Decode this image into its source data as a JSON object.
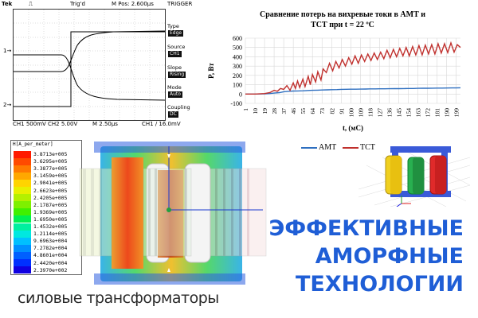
{
  "oscilloscope": {
    "brand": "Tek",
    "trigger_status": "Trig'd",
    "position": "M Pos: 2.600µs",
    "trigger_header": "TRIGGER",
    "menu": [
      {
        "label": "Type",
        "value": "Edge"
      },
      {
        "label": "Source",
        "value": "CH1"
      },
      {
        "label": "Slope",
        "value": "Rising"
      },
      {
        "label": "Mode",
        "value": "Auto"
      },
      {
        "label": "Coupling",
        "value": "DC"
      }
    ],
    "bottom_left": "CH1  500mV   CH2  5.00V",
    "bottom_mid": "M 2.50µs",
    "bottom_right": "CH1 ∕  16.0mV",
    "ch1_marker": "1→",
    "ch2_marker": "2→"
  },
  "loss_chart": {
    "title_line1": "Сравнение потерь на вихревые токи в АМТ и",
    "title_line2": "ТСТ при t = 22 ºC",
    "ylabel": "P, Вт",
    "xlabel": "t, (мС)"
  },
  "chart_data": {
    "type": "line",
    "title": "Сравнение потерь на вихревые токи в АМТ и ТСТ при t = 22 ºC",
    "xlabel": "t, (мС)",
    "ylabel": "P, Вт",
    "ylim": [
      -100,
      600
    ],
    "yticks": [
      -100,
      0,
      100,
      200,
      300,
      400,
      500,
      600
    ],
    "xlim": [
      1,
      203
    ],
    "xticks": [
      1,
      10,
      19,
      28,
      37,
      46,
      55,
      64,
      73,
      82,
      91,
      100,
      109,
      118,
      127,
      136,
      145,
      154,
      163,
      172,
      181,
      190,
      199
    ],
    "grid": true,
    "series": [
      {
        "name": "АМТ",
        "color": "#2e6fc0",
        "x": [
          1,
          10,
          19,
          24,
          28,
          33,
          37,
          42,
          46,
          50,
          55,
          60,
          64,
          69,
          73,
          78,
          82,
          87,
          91,
          96,
          100,
          105,
          109,
          114,
          118,
          123,
          127,
          132,
          136,
          141,
          145,
          150,
          154,
          159,
          163,
          168,
          172,
          177,
          181,
          186,
          190,
          195,
          199,
          203
        ],
        "y": [
          0,
          0,
          2,
          5,
          10,
          15,
          25,
          30,
          32,
          33,
          35,
          38,
          40,
          42,
          43,
          45,
          47,
          48,
          50,
          51,
          52,
          52,
          53,
          54,
          55,
          55,
          56,
          56,
          57,
          58,
          58,
          59,
          60,
          60,
          61,
          62,
          62,
          63,
          64,
          64,
          65,
          66,
          66,
          67
        ]
      },
      {
        "name": "ТСТ",
        "color": "#c0302d",
        "x": [
          1,
          10,
          19,
          24,
          28,
          31,
          34,
          37,
          40,
          43,
          46,
          48,
          50,
          52,
          55,
          57,
          60,
          62,
          64,
          67,
          69,
          72,
          74,
          77,
          80,
          83,
          86,
          89,
          92,
          95,
          98,
          101,
          104,
          107,
          110,
          113,
          116,
          119,
          122,
          125,
          128,
          131,
          134,
          137,
          140,
          143,
          146,
          149,
          152,
          155,
          158,
          161,
          164,
          167,
          170,
          173,
          176,
          179,
          182,
          185,
          188,
          191,
          194,
          197,
          200,
          203
        ],
        "y": [
          0,
          0,
          5,
          15,
          40,
          30,
          60,
          50,
          90,
          40,
          120,
          60,
          140,
          70,
          160,
          80,
          190,
          100,
          210,
          130,
          240,
          150,
          270,
          230,
          330,
          250,
          350,
          280,
          370,
          300,
          390,
          320,
          410,
          330,
          420,
          350,
          430,
          360,
          440,
          370,
          450,
          380,
          470,
          390,
          480,
          400,
          490,
          410,
          500,
          410,
          510,
          420,
          520,
          420,
          525,
          430,
          530,
          430,
          540,
          440,
          540,
          445,
          550,
          450,
          530,
          500
        ]
      }
    ]
  },
  "legend": {
    "items": [
      {
        "label": "АМТ",
        "color": "#2e6fc0"
      },
      {
        "label": "ТСТ",
        "color": "#c0302d"
      }
    ]
  },
  "color_scale": {
    "title": "H[A_per_meter]",
    "entries": [
      {
        "value": "3.8713e+005",
        "color": "#ff1a00"
      },
      {
        "value": "3.6295e+005",
        "color": "#ff4a00"
      },
      {
        "value": "3.3877e+005",
        "color": "#ff7a00"
      },
      {
        "value": "3.1459e+005",
        "color": "#ffa800"
      },
      {
        "value": "2.9041e+005",
        "color": "#ffd400"
      },
      {
        "value": "2.6623e+005",
        "color": "#e8f000"
      },
      {
        "value": "2.4205e+005",
        "color": "#b4f000"
      },
      {
        "value": "2.1787e+005",
        "color": "#7ef000"
      },
      {
        "value": "1.9369e+005",
        "color": "#40f000"
      },
      {
        "value": "1.6950e+005",
        "color": "#00f050"
      },
      {
        "value": "1.4532e+005",
        "color": "#00f0a0"
      },
      {
        "value": "1.2114e+005",
        "color": "#00e8e0"
      },
      {
        "value": "9.6963e+004",
        "color": "#00c0ff"
      },
      {
        "value": "7.2782e+004",
        "color": "#0090ff"
      },
      {
        "value": "4.8601e+004",
        "color": "#0060ff"
      },
      {
        "value": "2.4420e+004",
        "color": "#0030ff"
      },
      {
        "value": "2.3970e+002",
        "color": "#1000e0"
      }
    ]
  },
  "subtitle": "силовые трансформаторы",
  "slogan": {
    "line1": "ЭФФЕКТИВНЫЕ",
    "line2": "АМОРФНЫЕ",
    "line3": "ТЕХНОЛОГИИ"
  }
}
